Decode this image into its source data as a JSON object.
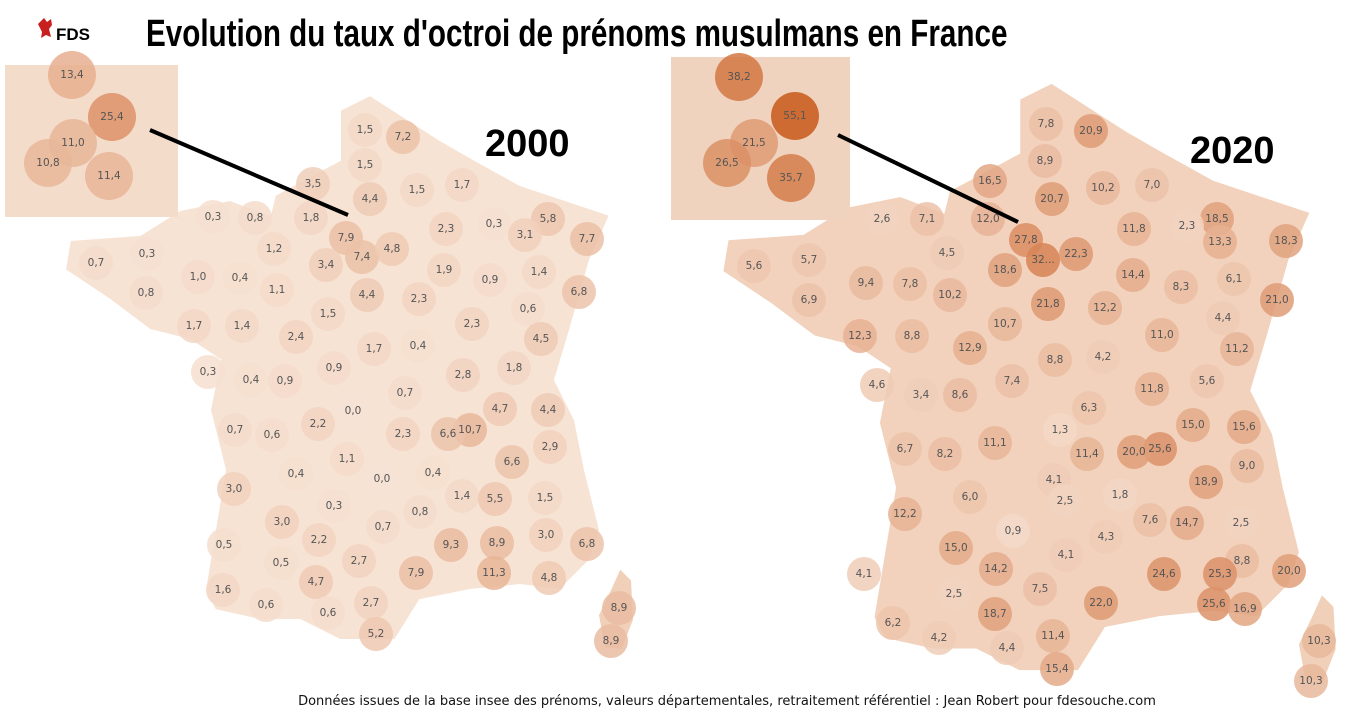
{
  "header": {
    "logo": "FDS",
    "title": "Evolution du taux d'octroi de prénoms musulmans en France"
  },
  "maps": [
    {
      "year": "2000",
      "inset": {
        "values": [
          13.4,
          25.4,
          11.0,
          10.8,
          11.4
        ],
        "value_labels": [
          "13,4",
          "25,4",
          "11,0",
          "10,8",
          "11,4"
        ]
      },
      "departments": {
        "values": [
          1.5,
          7.2,
          1.5,
          3.5,
          4.4,
          1.5,
          1.7,
          0.3,
          0.8,
          1.8,
          7.9,
          2.3,
          0.3,
          5.8,
          3.1,
          7.7,
          0.3,
          1.2,
          7.4,
          4.8,
          0.7,
          3.4,
          1.9,
          0.9,
          1.4,
          1.0,
          0.4,
          1.1,
          0.8,
          4.4,
          2.3,
          6.8,
          0.6,
          1.5,
          1.7,
          1.4,
          2.3,
          2.4,
          4.5,
          1.7,
          0.4,
          0.9,
          1.8,
          0.3,
          0.4,
          0.9,
          2.8,
          0.7,
          4.7,
          4.4,
          0.0,
          10.7,
          0.7,
          0.6,
          2.2,
          2.3,
          6.6,
          6.6,
          2.9,
          1.1,
          0.4,
          0.0,
          0.4,
          3.0,
          1.4,
          5.5,
          1.5,
          0.3,
          0.8,
          3.0,
          0.7,
          3.0,
          2.2,
          9.3,
          8.9,
          6.8,
          0.5,
          0.5,
          2.7,
          7.9,
          11.3,
          4.8,
          4.7,
          1.6,
          0.6,
          0.6,
          2.7,
          8.9,
          5.2,
          8.9
        ],
        "value_labels": [
          "1,5",
          "7,2",
          "1,5",
          "3,5",
          "4,4",
          "1,5",
          "1,7",
          "0,3",
          "0,8",
          "1,8",
          "7,9",
          "2,3",
          "0,3",
          "5,8",
          "3,1",
          "7,7",
          "0,3",
          "1,2",
          "7,4",
          "4,8",
          "0,7",
          "3,4",
          "1,9",
          "0,9",
          "1,4",
          "1,0",
          "0,4",
          "1,1",
          "0,8",
          "4,4",
          "2,3",
          "6,8",
          "0,6",
          "1,5",
          "1,7",
          "1,4",
          "2,3",
          "2,4",
          "4,5",
          "1,7",
          "0,4",
          "0,9",
          "1,8",
          "0,3",
          "0,4",
          "0,9",
          "2,8",
          "0,7",
          "4,7",
          "4,4",
          "0,0",
          "10,7",
          "0,7",
          "0,6",
          "2,2",
          "2,3",
          "6,6",
          "6,6",
          "2,9",
          "1,1",
          "0,4",
          "0,0",
          "0,4",
          "3,0",
          "1,4",
          "5,5",
          "1,5",
          "0,3",
          "0,8",
          "3,0",
          "0,7",
          "3,0",
          "2,2",
          "9,3",
          "8,9",
          "6,8",
          "0,5",
          "0,5",
          "2,7",
          "7,9",
          "11,3",
          "4,8",
          "4,7",
          "1,6",
          "0,6",
          "0,6",
          "2,7",
          "8,9",
          "5,2",
          "8,9"
        ]
      }
    },
    {
      "year": "2020",
      "inset": {
        "values": [
          38.2,
          55.1,
          21.5,
          26.5,
          35.7
        ],
        "value_labels": [
          "38,2",
          "55,1",
          "21,5",
          "26,5",
          "35,7"
        ]
      },
      "departments": {
        "values": [
          7.8,
          20.9,
          8.9,
          16.5,
          20.7,
          10.2,
          7.0,
          2.6,
          7.1,
          12.0,
          18.5,
          27.8,
          32,
          22.3,
          11.8,
          2.3,
          13.3,
          18.3,
          4.5,
          5.6,
          5.7,
          18.6,
          14.4,
          9.4,
          7.8,
          8.3,
          6.1,
          10.2,
          21.8,
          6.9,
          21.0,
          12.2,
          4.4,
          10.7,
          12.3,
          8.8,
          11.0,
          12.9,
          11.2,
          8.8,
          4.2,
          7.4,
          4.6,
          5.6,
          3.4,
          8.6,
          11.8,
          6.3,
          15.0,
          15.6,
          1.3,
          11.1,
          25.6,
          20.0,
          6.7,
          8.2,
          11.4,
          9.0,
          18.9,
          4.1,
          6.0,
          2.5,
          1.8,
          12.2,
          7.6,
          14.7,
          2.5,
          0.9,
          4.3,
          15.0,
          4.1,
          8.8,
          20.0,
          14.2,
          24.6,
          25.3,
          4.1,
          2.5,
          7.5,
          22.0,
          25.6,
          18.7,
          16.9,
          6.2,
          4.2,
          11.4,
          10.3,
          4.4,
          15.4,
          10.3
        ],
        "value_labels": [
          "7,8",
          "20,9",
          "8,9",
          "16,5",
          "20,7",
          "10,2",
          "7,0",
          "2,6",
          "7,1",
          "12,0",
          "18,5",
          "27,8",
          "32...",
          "22,3",
          "11,8",
          "2,3",
          "13,3",
          "18,3",
          "4,5",
          "5,6",
          "5,7",
          "18,6",
          "14,4",
          "9,4",
          "7,8",
          "8,3",
          "6,1",
          "10,2",
          "21,8",
          "6,9",
          "21,0",
          "12,2",
          "4,4",
          "10,7",
          "12,3",
          "8,8",
          "11,0",
          "12,9",
          "11,2",
          "8,8",
          "4,2",
          "7,4",
          "4,6",
          "5,6",
          "3,4",
          "8,6",
          "11,8",
          "6,3",
          "15,0",
          "15,6",
          "1,3",
          "11,1",
          "25,6",
          "20,0",
          "6,7",
          "8,2",
          "11,4",
          "9,0",
          "18,9",
          "4,1",
          "6,0",
          "2,5",
          "1,8",
          "12,2",
          "7,6",
          "14,7",
          "2,5",
          "0,9",
          "4,3",
          "15,0",
          "4,1",
          "8,8",
          "20,0",
          "14,2",
          "24,6",
          "25,3",
          "4,1",
          "2,5",
          "7,5",
          "22,0",
          "25,6",
          "18,7",
          "16,9",
          "6,2",
          "4,2",
          "11,4",
          "10,3",
          "4,4",
          "15,4",
          "10,3"
        ]
      }
    }
  ],
  "footer": "Données issues de la base insee des prénoms, valeurs départementales, retraitement référentiel : Jean Robert pour fdesouche.com"
}
